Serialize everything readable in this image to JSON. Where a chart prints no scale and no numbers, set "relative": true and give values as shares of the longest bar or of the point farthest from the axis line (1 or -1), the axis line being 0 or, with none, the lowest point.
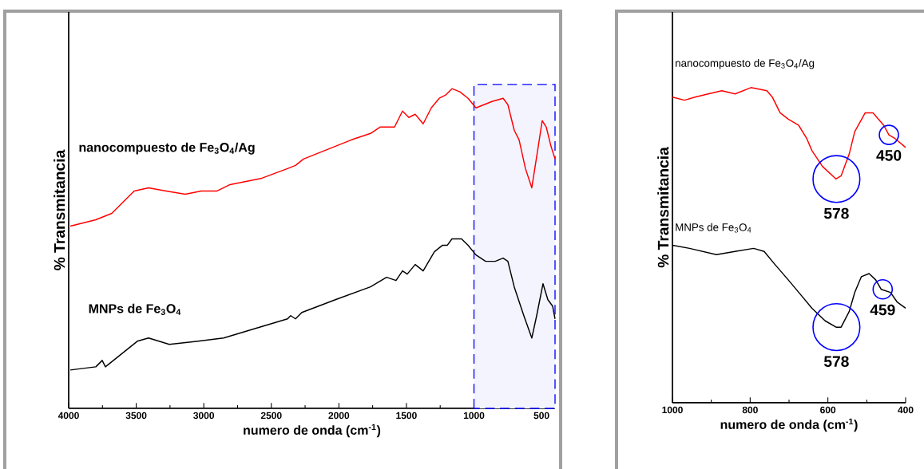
{
  "chart_data": [
    {
      "type": "line",
      "relative": true,
      "xlabel": "numero de onda (cm$^{-1}$)",
      "ylabel": "% Transmitancia",
      "xlim": [
        4000,
        400
      ],
      "xticks": [
        4000,
        3500,
        3000,
        2500,
        2000,
        1500,
        1000,
        500
      ],
      "bands": [
        {
          "axis": "x",
          "from": 1000,
          "to": 400,
          "color": "#0000ff"
        }
      ],
      "series": [
        {
          "name": "nanocompuesto de Fe$_{3}$O$_{4}$/Ag",
          "color": "#ff0000",
          "x": [
            3988,
            3799,
            3681,
            3610,
            3515,
            3409,
            3279,
            3137,
            3019,
            2948,
            2901,
            2806,
            2570,
            2380,
            2321,
            2262,
            2144,
            1907,
            1766,
            1695,
            1588,
            1529,
            1482,
            1435,
            1376,
            1316,
            1257,
            1210,
            1163,
            1104,
            1044,
            985,
            867,
            784,
            749,
            702,
            666,
            619,
            572,
            524,
            495,
            465,
            430,
            400
          ],
          "values": [
            0.57,
            0.59,
            0.61,
            0.64,
            0.68,
            0.69,
            0.68,
            0.67,
            0.68,
            0.68,
            0.68,
            0.7,
            0.72,
            0.75,
            0.76,
            0.78,
            0.8,
            0.84,
            0.86,
            0.88,
            0.88,
            0.93,
            0.91,
            0.92,
            0.89,
            0.94,
            0.97,
            0.98,
            1.0,
            0.99,
            0.97,
            0.94,
            0.96,
            0.97,
            0.95,
            0.87,
            0.84,
            0.75,
            0.69,
            0.82,
            0.9,
            0.88,
            0.82,
            0.78
          ]
        },
        {
          "name": "MNPs de Fe$_{3}$O$_{4}$",
          "color": "#000000",
          "x": [
            3988,
            3799,
            3752,
            3728,
            3610,
            3492,
            3409,
            3255,
            3042,
            2853,
            2617,
            2380,
            2357,
            2321,
            2274,
            2026,
            1766,
            1647,
            1577,
            1529,
            1494,
            1435,
            1376,
            1293,
            1234,
            1198,
            1163,
            1092,
            1044,
            985,
            914,
            843,
            784,
            749,
            702,
            631,
            572,
            536,
            489,
            453,
            418,
            400
          ],
          "values": [
            0.12,
            0.13,
            0.15,
            0.13,
            0.17,
            0.21,
            0.22,
            0.2,
            0.21,
            0.22,
            0.25,
            0.28,
            0.29,
            0.28,
            0.3,
            0.34,
            0.38,
            0.41,
            0.4,
            0.43,
            0.42,
            0.45,
            0.43,
            0.49,
            0.51,
            0.51,
            0.53,
            0.53,
            0.51,
            0.48,
            0.46,
            0.46,
            0.47,
            0.46,
            0.38,
            0.29,
            0.22,
            0.29,
            0.39,
            0.34,
            0.32,
            0.28
          ]
        }
      ]
    },
    {
      "type": "line",
      "relative": true,
      "xlabel": "numero de onda (cm$^{-1}$)",
      "ylabel": "% Transmitancia",
      "xlim": [
        1000,
        400
      ],
      "xticks": [
        1000,
        800,
        600,
        400
      ],
      "annotations": [
        {
          "text": "578",
          "x": 578,
          "y": 0.71
        },
        {
          "text": "450",
          "x": 443,
          "y": 0.85
        },
        {
          "text": "578",
          "x": 578,
          "y": 0.24
        },
        {
          "text": "459",
          "x": 459,
          "y": 0.36
        }
      ],
      "series": [
        {
          "name": "nanocompuesto de Fe$_{3}$O$_{4}$/Ag",
          "color": "#ff0000",
          "x": [
            1000,
            969,
            942,
            908,
            873,
            839,
            798,
            757,
            743,
            723,
            702,
            675,
            655,
            641,
            614,
            579,
            566,
            545,
            531,
            504,
            484,
            456,
            443,
            429,
            400
          ],
          "values": [
            0.97,
            0.96,
            0.97,
            0.98,
            0.99,
            0.98,
            1.0,
            0.99,
            0.97,
            0.92,
            0.9,
            0.88,
            0.84,
            0.8,
            0.75,
            0.71,
            0.72,
            0.79,
            0.86,
            0.92,
            0.92,
            0.88,
            0.85,
            0.84,
            0.81
          ]
        },
        {
          "name": "MNPs de Fe$_{3}$O$_{4}$",
          "color": "#000000",
          "x": [
            1000,
            956,
            887,
            839,
            791,
            764,
            737,
            702,
            668,
            641,
            607,
            579,
            566,
            545,
            531,
            514,
            494,
            477,
            463,
            439,
            422,
            400
          ],
          "values": [
            0.5,
            0.49,
            0.47,
            0.48,
            0.49,
            0.48,
            0.44,
            0.39,
            0.34,
            0.3,
            0.26,
            0.24,
            0.24,
            0.29,
            0.35,
            0.4,
            0.41,
            0.39,
            0.36,
            0.35,
            0.32,
            0.3
          ]
        }
      ]
    }
  ]
}
